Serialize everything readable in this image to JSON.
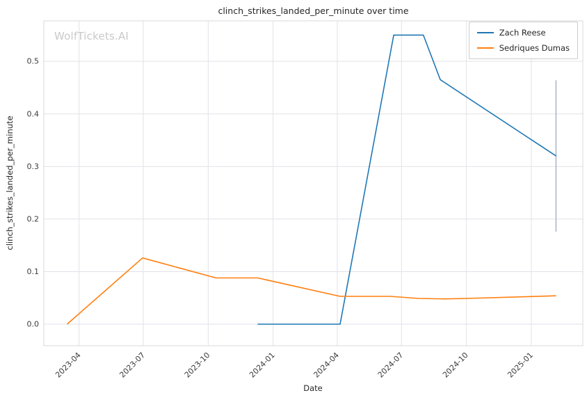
{
  "watermark": "WolfTickets.AI",
  "chart_data": {
    "type": "line",
    "title": "clinch_strikes_landed_per_minute over time",
    "xlabel": "Date",
    "ylabel": "clinch_strikes_landed_per_minute",
    "x_ticks": [
      "2023-04",
      "2023-07",
      "2023-10",
      "2024-01",
      "2024-04",
      "2024-07",
      "2024-10",
      "2025-01"
    ],
    "y_ticks": [
      0.0,
      0.1,
      0.2,
      0.3,
      0.4,
      0.5
    ],
    "xlim": [
      "2023-02-10",
      "2025-03-15"
    ],
    "ylim": [
      -0.041,
      0.577
    ],
    "grid": true,
    "legend_position": "top-right",
    "series": [
      {
        "name": "Zach Reese",
        "color": "#1f77b4",
        "points": [
          [
            "2023-12-10",
            0.0
          ],
          [
            "2024-04-05",
            0.0
          ],
          [
            "2024-06-20",
            0.55
          ],
          [
            "2024-08-01",
            0.55
          ],
          [
            "2024-08-25",
            0.465
          ],
          [
            "2025-02-05",
            0.32
          ]
        ]
      },
      {
        "name": "Sedriques Dumas",
        "color": "#ff7f0e",
        "points": [
          [
            "2023-03-15",
            0.0
          ],
          [
            "2023-06-30",
            0.126
          ],
          [
            "2023-10-12",
            0.088
          ],
          [
            "2023-12-10",
            0.088
          ],
          [
            "2024-04-05",
            0.053
          ],
          [
            "2024-06-15",
            0.053
          ],
          [
            "2024-07-25",
            0.049
          ],
          [
            "2024-09-01",
            0.048
          ],
          [
            "2024-10-01",
            0.049
          ],
          [
            "2025-02-05",
            0.054
          ]
        ]
      }
    ],
    "annotations": [
      {
        "type": "errorbar",
        "x": "2025-02-05",
        "y0": 0.176,
        "y1": 0.464,
        "color": "#a9b7cf"
      }
    ]
  }
}
